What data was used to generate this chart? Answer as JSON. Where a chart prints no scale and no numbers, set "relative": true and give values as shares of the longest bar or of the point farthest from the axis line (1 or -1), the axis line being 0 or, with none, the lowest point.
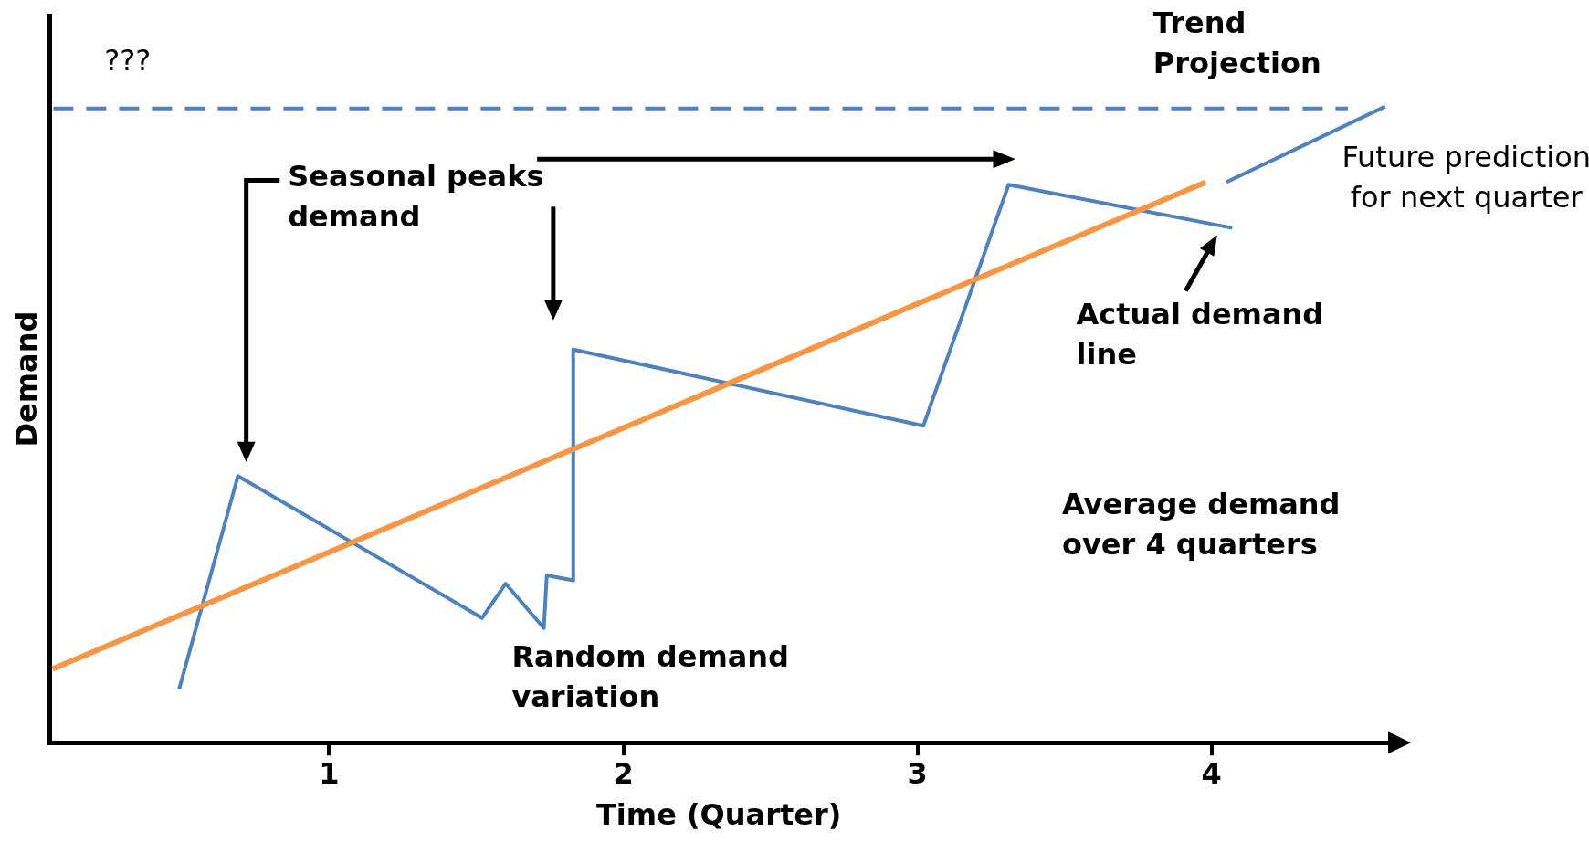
{
  "chart_data": {
    "type": "line",
    "relative": true,
    "xlabel": "Time (Quarter)",
    "ylabel": "Demand",
    "xlim": [
      0.05,
      4.6
    ],
    "xticks": [
      1,
      2,
      3,
      4
    ],
    "grid": false,
    "legend": false,
    "series": [
      {
        "type": "line",
        "color": "#f79646",
        "x": [
          0.06,
          3.98
        ],
        "values": [
          0.116,
          0.881
        ]
      },
      {
        "type": "line",
        "color": "#4f81bd",
        "x": [
          0.49,
          0.69,
          1.52,
          1.6,
          1.73,
          1.74,
          1.83,
          1.83,
          3.02,
          3.31,
          4.07
        ],
        "values": [
          0.084,
          0.419,
          0.196,
          0.25,
          0.18,
          0.263,
          0.255,
          0.618,
          0.498,
          0.877,
          0.809
        ]
      },
      {
        "type": "line",
        "color": "#4f81bd",
        "x": [
          4.05,
          4.59
        ],
        "values": [
          0.881,
          1
        ]
      }
    ],
    "ref_lines": [
      {
        "axis": "y",
        "value": 0.997,
        "color": "#4f81bd",
        "line_style": "dashed"
      }
    ],
    "annotations": [
      "???",
      "Trend Projection",
      "Seasonal peaks demand",
      "Random demand variation",
      "Future prediction for next quarter",
      "Actual demand line",
      "Average demand over 4 quarters"
    ]
  }
}
